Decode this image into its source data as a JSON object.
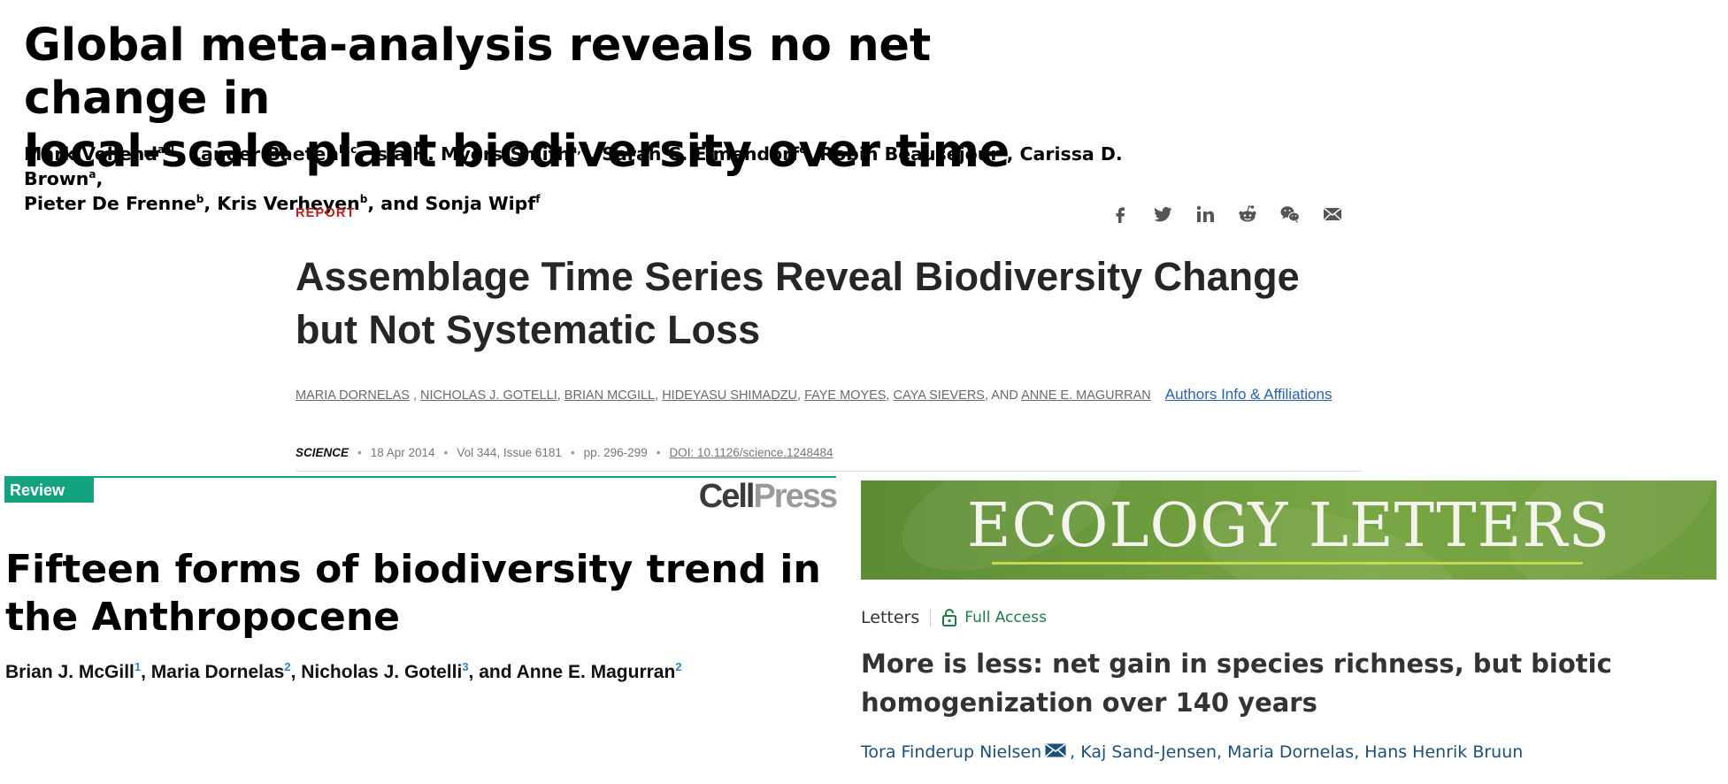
{
  "pnas": {
    "title_line1": "Global meta-analysis reveals no net change in",
    "title_line2": "local-scale plant biodiversity over time",
    "authors": [
      {
        "name": "Mark Vellend",
        "sup": "a,1",
        "sep": ", "
      },
      {
        "name": "Lander Baeten",
        "sup": "b,c",
        "sep": ", "
      },
      {
        "name": "Isla H. Myers-Smith",
        "sup": "a,d",
        "sep": ", "
      },
      {
        "name": "Sarah C. Elmendorf",
        "sup": "e",
        "sep": ", "
      },
      {
        "name": "Robin Beauséjour",
        "sup": "a",
        "sep": ", "
      },
      {
        "name": "Carissa D. Brown",
        "sup": "a",
        "sep": ","
      },
      {
        "name": "Pieter De Frenne",
        "sup": "b",
        "sep": ", "
      },
      {
        "name": "Kris Verheyen",
        "sup": "b",
        "sep": ", and "
      },
      {
        "name": "Sonja Wipf",
        "sup": "f",
        "sep": ""
      }
    ]
  },
  "science": {
    "label": "REPORT",
    "share_icons": [
      "facebook-icon",
      "twitter-icon",
      "linkedin-icon",
      "reddit-icon",
      "wechat-icon",
      "email-icon"
    ],
    "title_line1": "Assemblage Time Series Reveal Biodiversity Change",
    "title_line2": "but Not Systematic Loss",
    "authors": [
      "MARIA DORNELAS",
      "NICHOLAS J. GOTELLI",
      "BRIAN MCGILL",
      "HIDEYASU SHIMADZU",
      "FAYE MOYES",
      "CAYA SIEVERS",
      "ANNE E. MAGURRAN"
    ],
    "authors_and": "AND",
    "affiliations_link": "Authors Info & Affiliations",
    "journal": "SCIENCE",
    "date": "18 Apr 2014",
    "volume": "Vol 344, Issue 6181",
    "pages": "pp. 296-299",
    "doi": "DOI: 10.1126/science.1248484",
    "accent_color": "#c21a1a",
    "link_color": "#2b61b3"
  },
  "cell": {
    "badge": "Review",
    "logo_part1": "Cell",
    "logo_part2": "Press",
    "title_line1": "Fifteen forms of biodiversity trend in",
    "title_line2": "the Anthropocene",
    "authors": [
      {
        "name": "Brian J. McGill",
        "sup": "1",
        "sep": ", "
      },
      {
        "name": "Maria Dornelas",
        "sup": "2",
        "sep": ", "
      },
      {
        "name": "Nicholas J. Gotelli",
        "sup": "3",
        "sep": ", and "
      },
      {
        "name": "Anne E. Magurran",
        "sup": "2",
        "sep": ""
      }
    ],
    "accent_color": "#14a37f"
  },
  "ecology": {
    "banner_title": "ECOLOGY LETTERS",
    "section": "Letters",
    "access": "Full Access",
    "title_line1": "More is less: net gain in species richness, but biotic",
    "title_line2": "homogenization over 140 years",
    "author1": "Tora Finderup Nielsen",
    "authors_rest": ", Kaj Sand-Jensen, Maria Dornelas, Hans Henrik Bruun",
    "banner_color": "#6b9a3d",
    "access_color": "#1d7c4a"
  }
}
